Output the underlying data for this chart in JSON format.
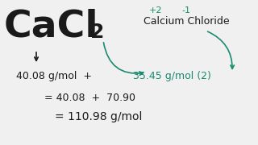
{
  "bg_color": "#f0f0f0",
  "black_color": "#1a1a1a",
  "teal_color": "#1a8a70",
  "cacl_text": "CaCl",
  "subscript": "2",
  "oxid_ca": "+2",
  "oxid_cl": "-1",
  "label": "Calcium Chloride",
  "line1_black": "40.08 g/mol  +  ",
  "line1_teal": "35.45 g/mol (2)",
  "line2": "= 40.08  +  70.90",
  "line3": "= 110.98 g/mol",
  "cacl_fontsize": 34,
  "sub_fontsize": 18,
  "oxid_fontsize": 8,
  "label_fontsize": 9,
  "line_fontsize": 9,
  "line3_fontsize": 10
}
